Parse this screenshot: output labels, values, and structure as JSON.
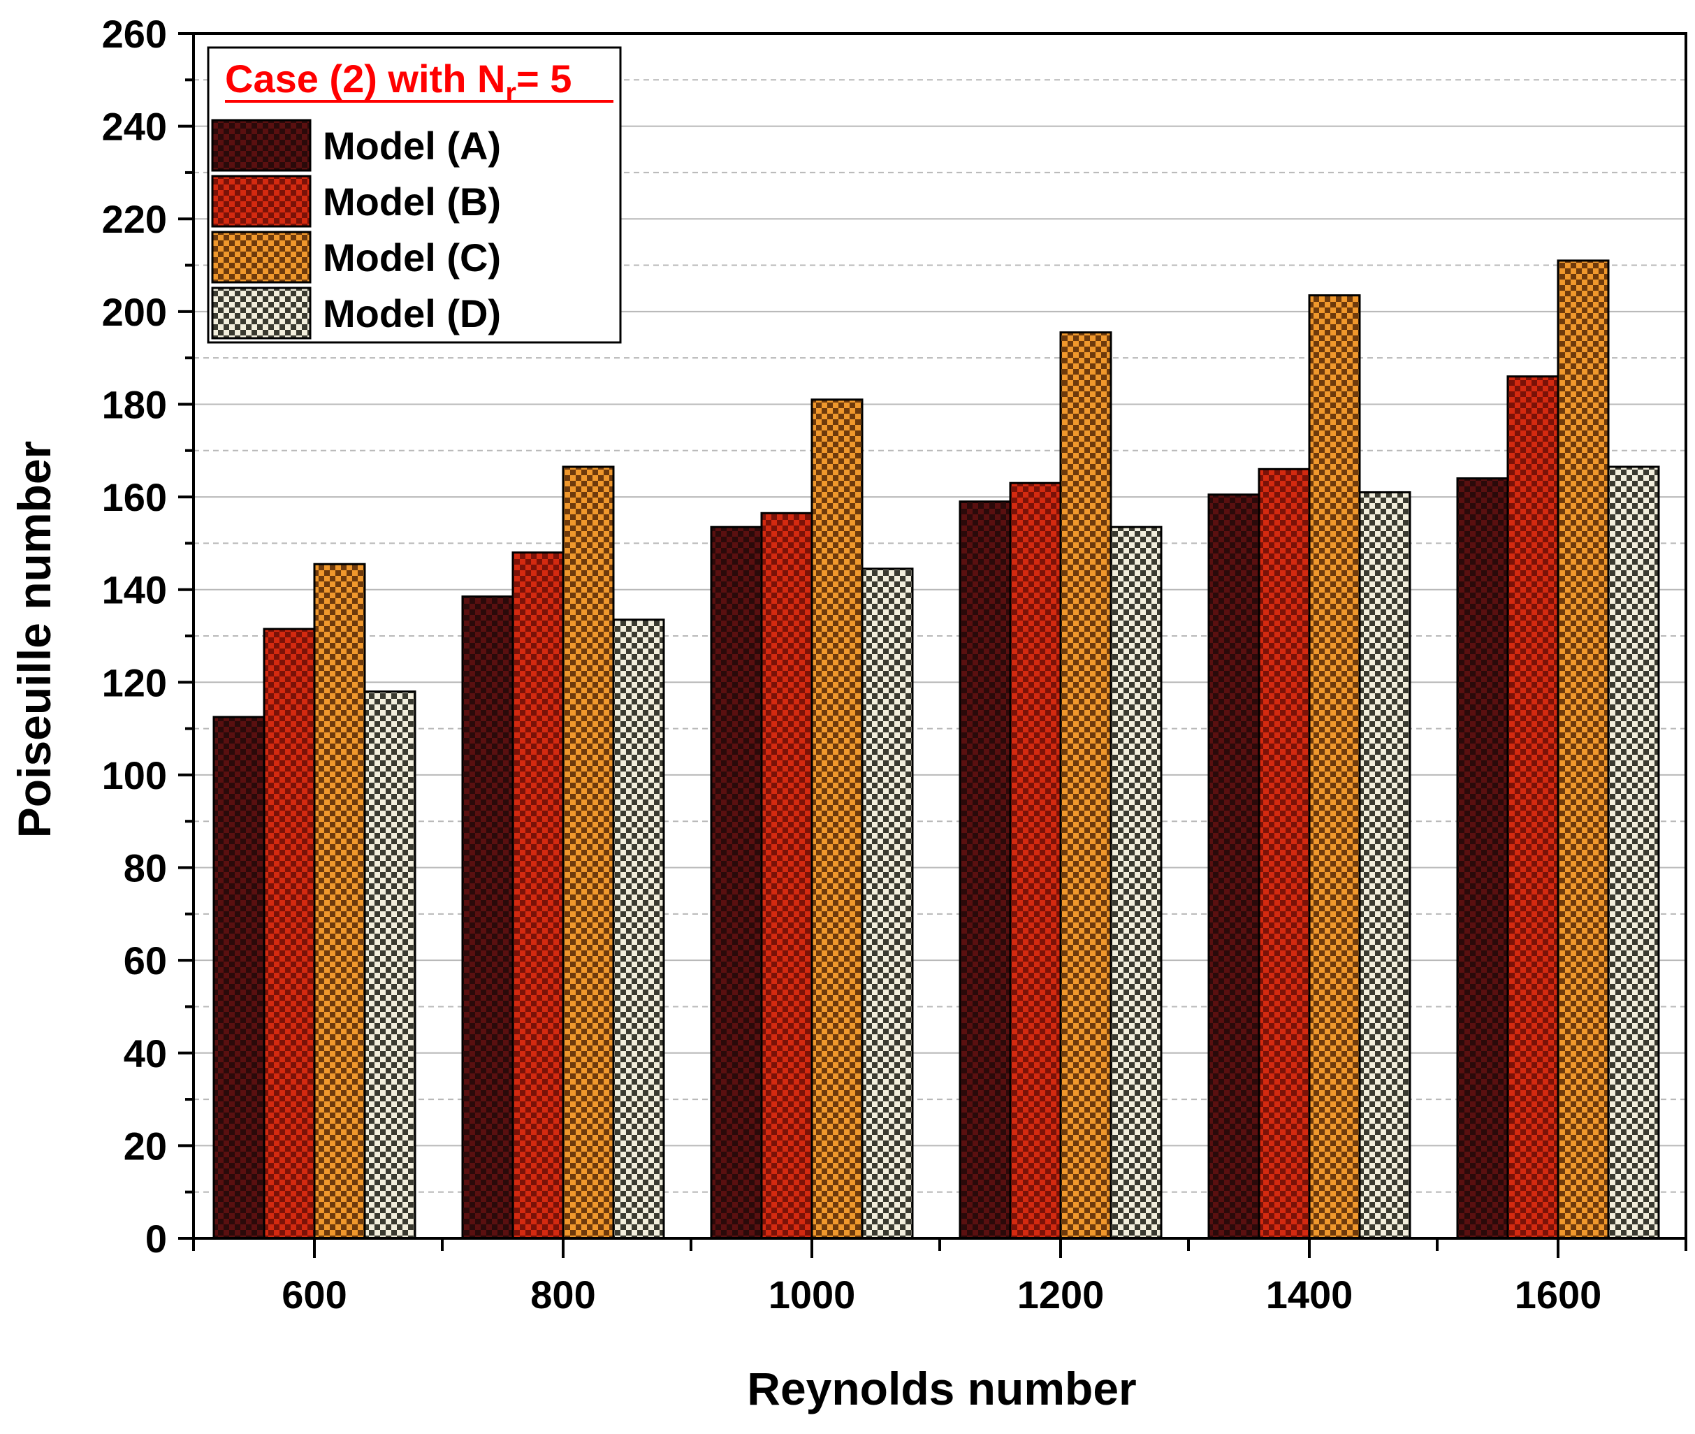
{
  "chart_data": {
    "type": "bar",
    "categories": [
      "600",
      "800",
      "1000",
      "1200",
      "1400",
      "1600"
    ],
    "series": [
      {
        "name": "Model (A)",
        "values": [
          112.5,
          138.5,
          153.5,
          159,
          160.5,
          164
        ],
        "color": "#2a0a0a",
        "check": "#5a1010"
      },
      {
        "name": "Model (B)",
        "values": [
          131.5,
          148,
          156.5,
          163,
          166,
          186
        ],
        "color": "#d42a10",
        "check": "#7a1208"
      },
      {
        "name": "Model (C)",
        "values": [
          145.5,
          166.5,
          181,
          195.5,
          203.5,
          211
        ],
        "color": "#f0982c",
        "check": "#6e3a0c"
      },
      {
        "name": "Model (D)",
        "values": [
          118,
          133.5,
          144.5,
          153.5,
          161,
          166.5
        ],
        "color": "#f2eedc",
        "check": "#3a3a30"
      }
    ],
    "title": "",
    "xlabel": "Reynolds number",
    "ylabel": "Poiseuille number",
    "ylim": [
      0,
      260
    ],
    "yticks": [
      "0",
      "20",
      "40",
      "60",
      "80",
      "100",
      "120",
      "140",
      "160",
      "180",
      "200",
      "220",
      "240",
      "260"
    ],
    "grid": "horizontal dashed",
    "legend": {
      "placement": "top-left",
      "title_main": "Case (2) with N",
      "title_sub": "r",
      "title_tail": "= 5",
      "title_color": "#ff0000"
    }
  }
}
